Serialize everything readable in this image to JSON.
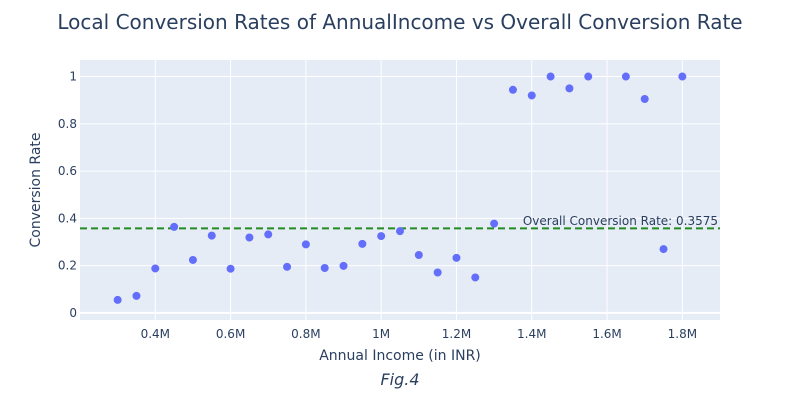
{
  "chart_data": {
    "type": "scatter",
    "title": "Local Conversion Rates of AnnualIncome vs Overall Conversion Rate",
    "xlabel": "Annual Income (in INR)",
    "ylabel": "Conversion Rate",
    "xlim": [
      200000,
      1900000
    ],
    "ylim": [
      -0.03,
      1.07
    ],
    "x_ticks": [
      {
        "value": 400000,
        "label": "0.4M"
      },
      {
        "value": 600000,
        "label": "0.6M"
      },
      {
        "value": 800000,
        "label": "0.8M"
      },
      {
        "value": 1000000,
        "label": "1M"
      },
      {
        "value": 1200000,
        "label": "1.2M"
      },
      {
        "value": 1400000,
        "label": "1.4M"
      },
      {
        "value": 1600000,
        "label": "1.6M"
      },
      {
        "value": 1800000,
        "label": "1.8M"
      }
    ],
    "y_ticks": [
      {
        "value": 0,
        "label": "0"
      },
      {
        "value": 0.2,
        "label": "0.2"
      },
      {
        "value": 0.4,
        "label": "0.4"
      },
      {
        "value": 0.6,
        "label": "0.6"
      },
      {
        "value": 0.8,
        "label": "0.8"
      },
      {
        "value": 1,
        "label": "1"
      }
    ],
    "grid": true,
    "series": [
      {
        "color": "#636efa",
        "points": [
          {
            "x": 300000,
            "y": 0.055
          },
          {
            "x": 350000,
            "y": 0.072
          },
          {
            "x": 400000,
            "y": 0.188
          },
          {
            "x": 450000,
            "y": 0.364
          },
          {
            "x": 500000,
            "y": 0.224
          },
          {
            "x": 550000,
            "y": 0.327
          },
          {
            "x": 600000,
            "y": 0.187
          },
          {
            "x": 650000,
            "y": 0.319
          },
          {
            "x": 700000,
            "y": 0.332
          },
          {
            "x": 750000,
            "y": 0.195
          },
          {
            "x": 800000,
            "y": 0.29
          },
          {
            "x": 850000,
            "y": 0.19
          },
          {
            "x": 900000,
            "y": 0.199
          },
          {
            "x": 950000,
            "y": 0.292
          },
          {
            "x": 1000000,
            "y": 0.325
          },
          {
            "x": 1050000,
            "y": 0.346
          },
          {
            "x": 1100000,
            "y": 0.245
          },
          {
            "x": 1150000,
            "y": 0.171
          },
          {
            "x": 1200000,
            "y": 0.233
          },
          {
            "x": 1250000,
            "y": 0.15
          },
          {
            "x": 1300000,
            "y": 0.378
          },
          {
            "x": 1350000,
            "y": 0.944
          },
          {
            "x": 1400000,
            "y": 0.92
          },
          {
            "x": 1450000,
            "y": 1.0
          },
          {
            "x": 1500000,
            "y": 0.95
          },
          {
            "x": 1550000,
            "y": 1.0
          },
          {
            "x": 1650000,
            "y": 1.0
          },
          {
            "x": 1700000,
            "y": 0.905
          },
          {
            "x": 1750000,
            "y": 0.27
          },
          {
            "x": 1800000,
            "y": 1.0
          }
        ]
      }
    ],
    "reference_line": {
      "y": 0.3575,
      "label": "Overall Conversion Rate: 0.3575",
      "color": "#228b22",
      "style": "dashed"
    },
    "caption": "Fig.4",
    "colors": {
      "plot_background": "#e5ecf6",
      "grid": "#ffffff",
      "text": "#2a3f5f"
    }
  }
}
